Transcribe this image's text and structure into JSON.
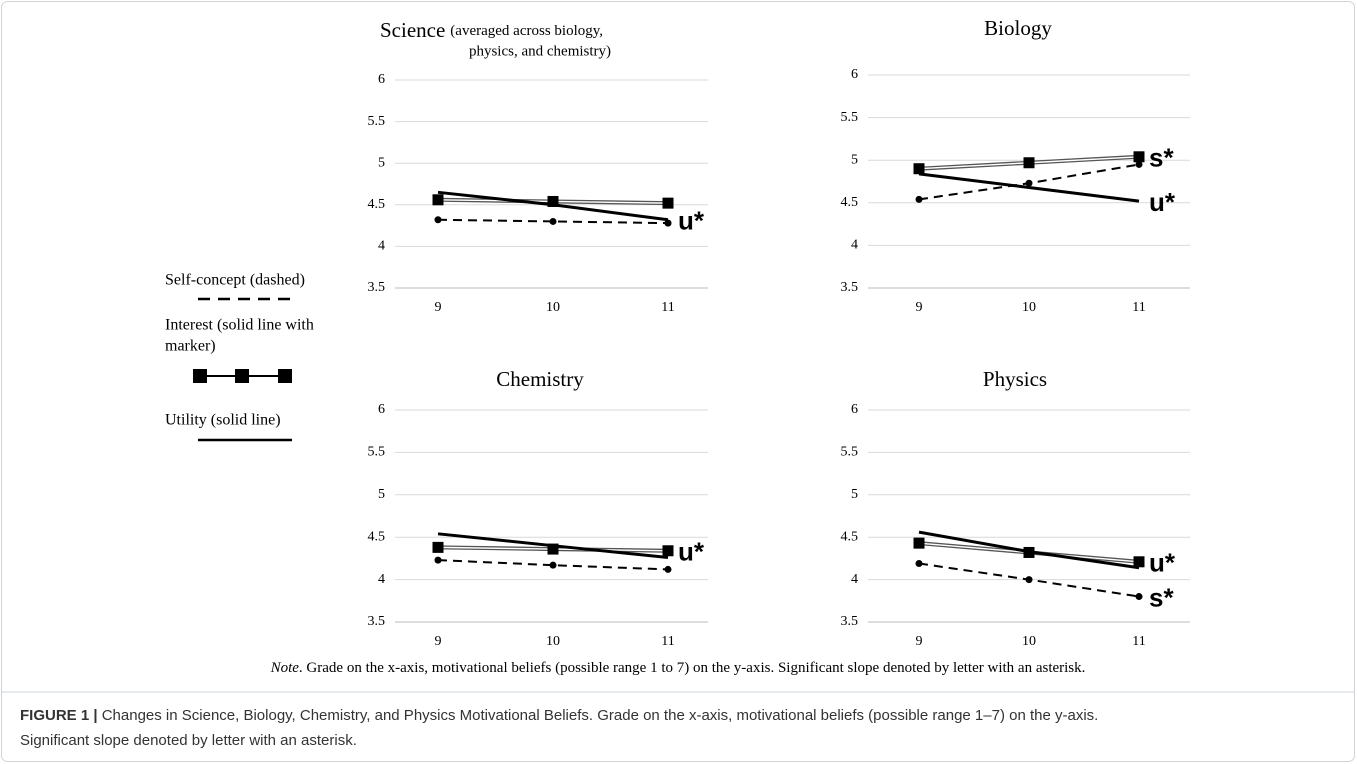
{
  "legend": [
    {
      "label": [
        "Self-concept (dashed)"
      ],
      "style": "dashed"
    },
    {
      "label": [
        "Interest (solid line with",
        "marker)"
      ],
      "style": "marker"
    },
    {
      "label": [
        "Utility (solid line)"
      ],
      "style": "solid"
    }
  ],
  "chart_data": [
    {
      "type": "line",
      "title": "Science",
      "subtitle": [
        "(averaged across biology,",
        "physics, and chemistry)"
      ],
      "categories": [
        "9",
        "10",
        "11"
      ],
      "ylim": [
        3.5,
        6
      ],
      "yticks": [
        3.5,
        4,
        4.5,
        5,
        5.5,
        6
      ],
      "grid": true,
      "series": [
        {
          "style": "dashed",
          "color": "#000000",
          "values": [
            4.32,
            4.3,
            4.28
          ]
        },
        {
          "style": "marker",
          "color": "#000000",
          "values": [
            4.56,
            4.54,
            4.52
          ]
        },
        {
          "style": "solid",
          "color": "#000000",
          "values": [
            4.65,
            4.5,
            4.32
          ]
        }
      ],
      "annotations": [
        "u*"
      ]
    },
    {
      "type": "line",
      "title": "Biology",
      "categories": [
        "9",
        "10",
        "11"
      ],
      "ylim": [
        3.5,
        6
      ],
      "yticks": [
        3.5,
        4,
        4.5,
        5,
        5.5,
        6
      ],
      "grid": true,
      "series": [
        {
          "style": "dashed",
          "color": "#000000",
          "values": [
            4.54,
            4.73,
            4.95
          ]
        },
        {
          "style": "marker",
          "color": "#000000",
          "values": [
            4.9,
            4.97,
            5.04
          ]
        },
        {
          "style": "solid",
          "color": "#000000",
          "values": [
            4.84,
            4.68,
            4.52
          ]
        }
      ],
      "annotations": [
        "s*",
        "u*"
      ]
    },
    {
      "type": "line",
      "title": "Chemistry",
      "categories": [
        "9",
        "10",
        "11"
      ],
      "ylim": [
        3.5,
        6
      ],
      "yticks": [
        3.5,
        4,
        4.5,
        5,
        5.5,
        6
      ],
      "grid": true,
      "series": [
        {
          "style": "dashed",
          "color": "#000000",
          "values": [
            4.23,
            4.17,
            4.12
          ]
        },
        {
          "style": "marker",
          "color": "#000000",
          "values": [
            4.38,
            4.36,
            4.34
          ]
        },
        {
          "style": "solid",
          "color": "#000000",
          "values": [
            4.54,
            4.4,
            4.26
          ]
        }
      ],
      "annotations": [
        "u*"
      ]
    },
    {
      "type": "line",
      "title": "Physics",
      "categories": [
        "9",
        "10",
        "11"
      ],
      "ylim": [
        3.5,
        6
      ],
      "yticks": [
        3.5,
        4,
        4.5,
        5,
        5.5,
        6
      ],
      "grid": true,
      "series": [
        {
          "style": "dashed",
          "color": "#000000",
          "values": [
            4.19,
            4.0,
            3.8
          ]
        },
        {
          "style": "marker",
          "color": "#000000",
          "values": [
            4.43,
            4.32,
            4.21
          ]
        },
        {
          "style": "solid",
          "color": "#000000",
          "values": [
            4.56,
            4.33,
            4.14
          ]
        }
      ],
      "annotations": [
        "u*",
        "s*"
      ]
    }
  ],
  "note": {
    "label": "Note",
    "text": ". Grade on the x-axis, motivational beliefs (possible range 1 to 7) on the y-axis. Significant slope denoted by letter with an asterisk."
  },
  "caption": {
    "label": "FIGURE 1 |",
    "lines": [
      " Changes in Science, Biology, Chemistry, and Physics Motivational Beliefs. Grade on the x-axis, motivational beliefs (possible range 1–7) on the y-axis.",
      "Significant slope denoted by letter with an asterisk."
    ]
  }
}
